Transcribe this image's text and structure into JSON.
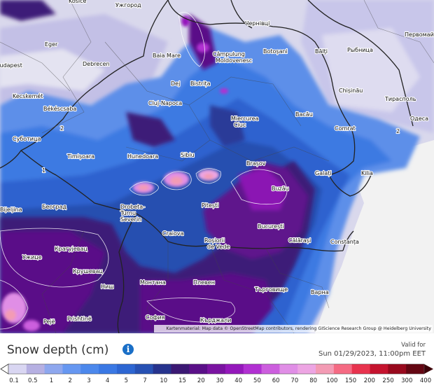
{
  "map": {
    "cities": [
      {
        "name": "Košice"
      },
      {
        "name": "Ужгород"
      },
      {
        "name": "Чернівці"
      },
      {
        "name": "Первомайськ"
      },
      {
        "name": "Eger"
      },
      {
        "name": "Baia Mare"
      },
      {
        "name": "Câmpulung Moldovenesc"
      },
      {
        "name": "Botoșani"
      },
      {
        "name": "Bălţi"
      },
      {
        "name": "Рыбница"
      },
      {
        "name": "Budapest"
      },
      {
        "name": "Debrecen"
      },
      {
        "name": "Dej"
      },
      {
        "name": "Bistrița"
      },
      {
        "name": "Chișinău"
      },
      {
        "name": "Тирасполь"
      },
      {
        "name": "Kecskemét"
      },
      {
        "name": "Békéscsaba"
      },
      {
        "name": "Cluj-Napoca"
      },
      {
        "name": "Bacău"
      },
      {
        "name": "Miercurea Ciuc"
      },
      {
        "name": "Comrat"
      },
      {
        "name": "Одеса"
      },
      {
        "name": "Суботица"
      },
      {
        "name": "Sibiu"
      },
      {
        "name": "Timișoara"
      },
      {
        "name": "Hunedoara"
      },
      {
        "name": "Brașov"
      },
      {
        "name": "Galați"
      },
      {
        "name": "Kilia"
      },
      {
        "name": "Buzău"
      },
      {
        "name": "Bijeljina"
      },
      {
        "name": "Београд"
      },
      {
        "name": "Drobeta-Turnu Severin"
      },
      {
        "name": "Pitești"
      },
      {
        "name": "București"
      },
      {
        "name": "Craiova"
      },
      {
        "name": "Roșiorii de Vede"
      },
      {
        "name": "Călărași"
      },
      {
        "name": "Constanța"
      },
      {
        "name": "Крагујевац"
      },
      {
        "name": "Ужице"
      },
      {
        "name": "Крушевац"
      },
      {
        "name": "Ниш"
      },
      {
        "name": "Монтана"
      },
      {
        "name": "Плевен"
      },
      {
        "name": "Търговище"
      },
      {
        "name": "Варна"
      },
      {
        "name": "София"
      },
      {
        "name": "Кърджали"
      },
      {
        "name": "Pejë"
      },
      {
        "name": "Prishtinë"
      }
    ],
    "contour_labels": [
      "2",
      "2",
      "1"
    ],
    "attribution": "Kartenmaterial: Map data © OpenStreetMap contributors, rendering GIScience Research Group @ Heidelberg University"
  },
  "legend": {
    "title": "Snow depth (cm)",
    "info_icon": "info-icon",
    "valid_label": "Valid for",
    "valid_time": "Sun 01/29/2023, 11:00pm EET",
    "ticks": [
      "0.1",
      "0.5",
      "1",
      "2",
      "3",
      "4",
      "5",
      "7",
      "10",
      "15",
      "20",
      "30",
      "40",
      "50",
      "60",
      "70",
      "80",
      "100",
      "150",
      "200",
      "250",
      "300",
      "400"
    ],
    "colors": [
      "#d9d6f2",
      "#b6b0e2",
      "#8ea7ee",
      "#6697f1",
      "#4c88ec",
      "#3a78e4",
      "#2d66d2",
      "#2751b3",
      "#26338d",
      "#3b1873",
      "#5a1088",
      "#7a13a1",
      "#9418bb",
      "#b130d2",
      "#cc5ede",
      "#e08ee6",
      "#eda5e3",
      "#f39bb4",
      "#f56a83",
      "#e8334e",
      "#c5132e",
      "#98091d",
      "#640612"
    ]
  }
}
